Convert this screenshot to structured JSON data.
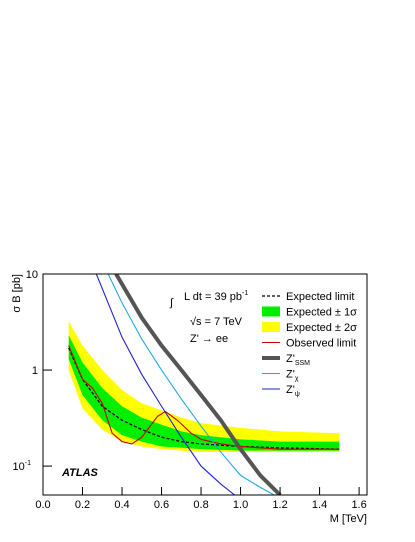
{
  "chart_data": {
    "type": "line",
    "x_label": "M [TeV]",
    "y_label": "σ B [pb]",
    "integral": "∫",
    "lumi": "L dt = 39 pb",
    "lumi_exp": "-1",
    "energy": "√s = 7 TeV",
    "process": "Z' → ee",
    "experiment": "ATLAS",
    "xlim": [
      0,
      1.64
    ],
    "ylim": [
      0.05,
      10
    ],
    "log_y": true,
    "xticks": [
      {
        "value": 0,
        "label": "0.0"
      },
      0.2,
      0.4,
      0.6,
      0.8,
      {
        "value": 1,
        "label": "1.0"
      },
      1.2,
      1.4,
      1.6
    ],
    "yticks": [
      {
        "value": 0.1,
        "label": "10",
        "sup": "-1"
      },
      1,
      10
    ],
    "bands": [
      {
        "name": "Expected ± 2σ",
        "color": "#ffff00",
        "x": [
          0.13,
          0.2,
          0.3,
          0.4,
          0.5,
          0.6,
          0.7,
          0.8,
          1.0,
          1.2,
          1.5
        ],
        "upper": [
          3.2,
          1.8,
          1.0,
          0.62,
          0.45,
          0.38,
          0.32,
          0.28,
          0.25,
          0.23,
          0.22
        ],
        "lower": [
          1.0,
          0.4,
          0.24,
          0.18,
          0.16,
          0.15,
          0.145,
          0.14,
          0.14,
          0.14,
          0.14
        ]
      },
      {
        "name": "Expected ± 1σ",
        "color": "#00ee00",
        "x": [
          0.13,
          0.2,
          0.3,
          0.4,
          0.5,
          0.6,
          0.7,
          0.8,
          1.0,
          1.2,
          1.5
        ],
        "upper": [
          2.3,
          1.2,
          0.65,
          0.42,
          0.32,
          0.27,
          0.23,
          0.21,
          0.19,
          0.18,
          0.18
        ],
        "lower": [
          1.3,
          0.55,
          0.3,
          0.21,
          0.18,
          0.16,
          0.155,
          0.15,
          0.145,
          0.145,
          0.145
        ]
      }
    ],
    "series": [
      {
        "name": "Expected limit",
        "color": "#000000",
        "width": 1.3,
        "dash": true,
        "x": [
          0.13,
          0.2,
          0.3,
          0.4,
          0.5,
          0.6,
          0.7,
          0.8,
          1.0,
          1.2,
          1.5
        ],
        "values": [
          1.7,
          0.8,
          0.42,
          0.3,
          0.24,
          0.2,
          0.18,
          0.17,
          0.16,
          0.155,
          0.15
        ]
      },
      {
        "name": "Observed limit",
        "color": "#cc0000",
        "width": 1.1,
        "x": [
          0.13,
          0.2,
          0.25,
          0.3,
          0.35,
          0.4,
          0.45,
          0.5,
          0.58,
          0.62,
          0.68,
          0.75,
          0.8,
          0.9,
          1.0,
          1.2,
          1.5
        ],
        "values": [
          1.8,
          0.8,
          0.65,
          0.45,
          0.22,
          0.18,
          0.17,
          0.2,
          0.33,
          0.37,
          0.3,
          0.22,
          0.19,
          0.17,
          0.16,
          0.15,
          0.15
        ]
      },
      {
        "name": "Z'",
        "sub": "SSM",
        "color": "#555555",
        "width": 4,
        "x": [
          0.37,
          0.5,
          0.6,
          0.7,
          0.8,
          0.9,
          1.0,
          1.1,
          1.2
        ],
        "values": [
          10,
          3.5,
          1.8,
          1.0,
          0.55,
          0.3,
          0.15,
          0.08,
          0.05
        ]
      },
      {
        "name": "Z'",
        "sub": "χ",
        "color": "#22aadd",
        "width": 1.1,
        "x": [
          0.33,
          0.4,
          0.5,
          0.6,
          0.7,
          0.8,
          0.9,
          1.0,
          1.1,
          1.17
        ],
        "values": [
          10,
          5,
          2.1,
          1.0,
          0.5,
          0.26,
          0.14,
          0.08,
          0.06,
          0.05
        ]
      },
      {
        "name": "Z'",
        "sub": "ψ",
        "color": "#2222cc",
        "width": 1.1,
        "x": [
          0.27,
          0.4,
          0.5,
          0.6,
          0.7,
          0.8,
          0.9,
          0.97
        ],
        "values": [
          10,
          2.2,
          0.9,
          0.42,
          0.2,
          0.1,
          0.065,
          0.05
        ]
      }
    ]
  }
}
